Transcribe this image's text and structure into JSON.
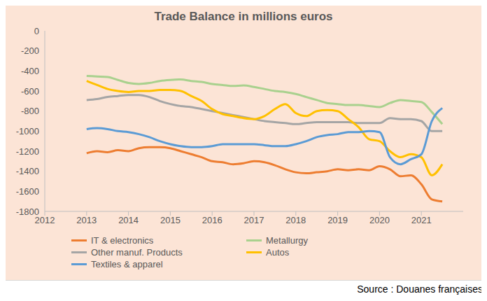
{
  "chart_data": {
    "type": "line",
    "title": "Trade Balance in millions euros",
    "source": "Source : Douanes françaises",
    "x": [
      2013,
      2013.25,
      2013.5,
      2013.75,
      2014,
      2014.25,
      2014.5,
      2014.75,
      2015,
      2015.25,
      2015.5,
      2015.75,
      2016,
      2016.25,
      2016.5,
      2016.75,
      2017,
      2017.25,
      2017.5,
      2017.75,
      2018,
      2018.25,
      2018.5,
      2018.75,
      2019,
      2019.25,
      2019.5,
      2019.75,
      2020,
      2020.25,
      2020.5,
      2020.75,
      2021,
      2021.25,
      2021.5
    ],
    "series": [
      {
        "name": "IT & electronics",
        "color": "#ED7D31",
        "values": [
          -1220,
          -1200,
          -1210,
          -1190,
          -1200,
          -1170,
          -1160,
          -1160,
          -1170,
          -1200,
          -1230,
          -1260,
          -1300,
          -1310,
          -1330,
          -1320,
          -1300,
          -1310,
          -1340,
          -1380,
          -1410,
          -1420,
          -1410,
          -1400,
          -1380,
          -1390,
          -1380,
          -1390,
          -1350,
          -1380,
          -1450,
          -1440,
          -1530,
          -1680,
          -1700
        ]
      },
      {
        "name": "Metallurgy",
        "color": "#A9D18E",
        "values": [
          -450,
          -455,
          -460,
          -490,
          -520,
          -530,
          -520,
          -500,
          -490,
          -485,
          -500,
          -510,
          -530,
          -540,
          -550,
          -545,
          -560,
          -580,
          -600,
          -610,
          -630,
          -660,
          -690,
          -720,
          -730,
          -740,
          -740,
          -750,
          -760,
          -720,
          -690,
          -700,
          -710,
          -810,
          -930
        ]
      },
      {
        "name": "Other manuf. Products",
        "color": "#A5A5A5",
        "values": [
          -690,
          -680,
          -660,
          -650,
          -640,
          -640,
          -660,
          -700,
          -730,
          -750,
          -760,
          -780,
          -800,
          -820,
          -840,
          -860,
          -880,
          -900,
          -910,
          -920,
          -930,
          -920,
          -910,
          -910,
          -910,
          -910,
          -920,
          -920,
          -920,
          -870,
          -880,
          -880,
          -900,
          -1000,
          -1000
        ]
      },
      {
        "name": "Autos",
        "color": "#FFC000",
        "values": [
          -500,
          -540,
          -580,
          -600,
          -610,
          -600,
          -600,
          -590,
          -590,
          -600,
          -650,
          -700,
          -780,
          -830,
          -850,
          -870,
          -880,
          -850,
          -780,
          -730,
          -820,
          -850,
          -800,
          -790,
          -800,
          -880,
          -960,
          -1080,
          -1100,
          -1200,
          -1260,
          -1230,
          -1260,
          -1440,
          -1330
        ]
      },
      {
        "name": "Textiles & apparel",
        "color": "#5B9BD5",
        "values": [
          -980,
          -970,
          -980,
          -1000,
          -1010,
          -1030,
          -1060,
          -1100,
          -1130,
          -1150,
          -1160,
          -1160,
          -1150,
          -1130,
          -1130,
          -1130,
          -1130,
          -1140,
          -1150,
          -1150,
          -1130,
          -1100,
          -1060,
          -1040,
          -1030,
          -1010,
          -1010,
          -1000,
          -1010,
          -1260,
          -1330,
          -1280,
          -1230,
          -900,
          -770
        ]
      }
    ],
    "xlim": [
      2012,
      2022
    ],
    "xticks": [
      2012,
      2013,
      2014,
      2015,
      2016,
      2017,
      2018,
      2019,
      2020,
      2021
    ],
    "ylim": [
      -1800,
      0
    ],
    "yticks": [
      -1800,
      -1600,
      -1400,
      -1200,
      -1000,
      -800,
      -600,
      -400,
      -200,
      0
    ],
    "grid": false,
    "legend": "bottom"
  }
}
